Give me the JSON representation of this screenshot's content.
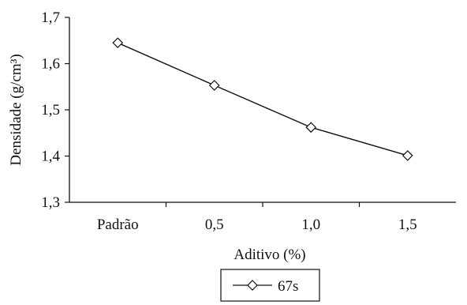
{
  "chart_data": {
    "type": "line",
    "categories": [
      "Padrão",
      "0,5",
      "1,0",
      "1,5"
    ],
    "series": [
      {
        "name": "67s",
        "values": [
          1.645,
          1.553,
          1.462,
          1.401
        ]
      }
    ],
    "xlabel": "Aditivo (%)",
    "ylabel": "Densidade (g/cm³)",
    "ylim": [
      1.3,
      1.7
    ],
    "yticks": [
      "1,3",
      "1,4",
      "1,5",
      "1,6",
      "1,7"
    ],
    "grid": false,
    "legend_position": "bottom-center",
    "marker": "diamond",
    "colors": {
      "line": "#111111",
      "marker_fill": "#ffffff"
    }
  }
}
